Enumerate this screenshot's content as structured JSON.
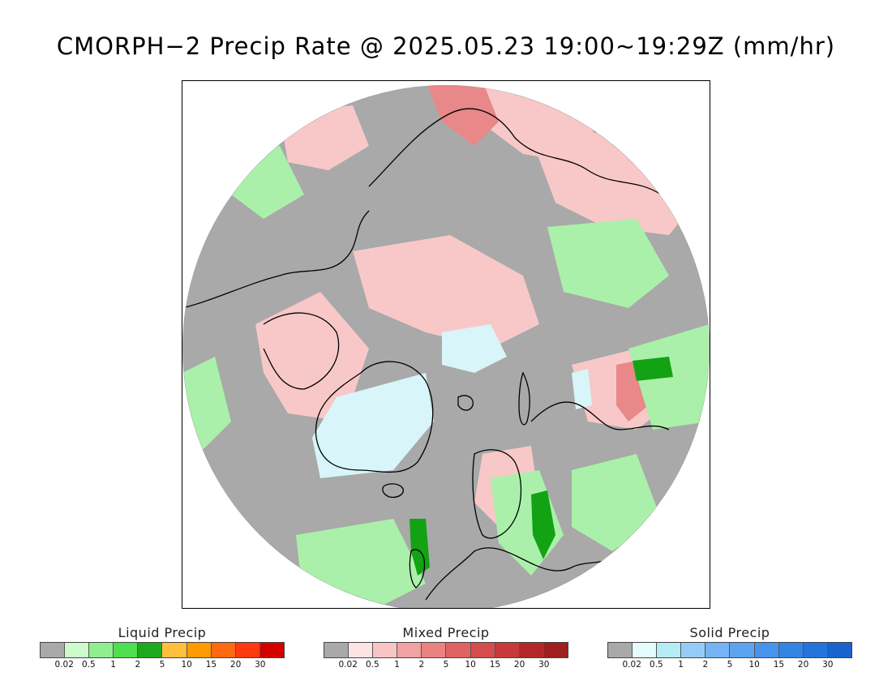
{
  "title": "CMORPH−2 Precip Rate @ 2025.05.23 19:00~19:29Z (mm/hr)",
  "colors": {
    "no_precip": "#a9a9a9",
    "liquid_light": "#aaf0aa",
    "liquid_med": "#5ce05c",
    "liquid_dark": "#13a213",
    "mixed_light": "#f8c8c8",
    "mixed_med": "#e88888",
    "mixed_dark": "#c84040",
    "solid_light": "#d8f6fa",
    "coast": "#000000"
  },
  "legends": [
    {
      "title": "Liquid Precip",
      "colors": [
        "#a9a9a9",
        "#ccfccc",
        "#90ee90",
        "#4ee04e",
        "#1ea81e",
        "#ffbe3c",
        "#ff9a00",
        "#ff6a10",
        "#ff3a10",
        "#d40000"
      ],
      "ticks": [
        "0.02",
        "0.5",
        "1",
        "2",
        "5",
        "10",
        "15",
        "20",
        "30"
      ]
    },
    {
      "title": "Mixed Precip",
      "colors": [
        "#a9a9a9",
        "#fde4e4",
        "#f9c4c4",
        "#f2a2a2",
        "#ea8282",
        "#e06262",
        "#d44c4c",
        "#c63a3a",
        "#b22828",
        "#a01e1e"
      ],
      "ticks": [
        "0.02",
        "0.5",
        "1",
        "2",
        "5",
        "10",
        "15",
        "20",
        "30"
      ]
    },
    {
      "title": "Solid Precip",
      "colors": [
        "#a9a9a9",
        "#e4fcfc",
        "#b4ecf8",
        "#94ccf8",
        "#74b4f4",
        "#5ca4f0",
        "#4694ec",
        "#3484e4",
        "#2474dc",
        "#1864cc"
      ],
      "ticks": [
        "0.02",
        "0.5",
        "1",
        "2",
        "5",
        "10",
        "15",
        "20",
        "30"
      ]
    }
  ]
}
